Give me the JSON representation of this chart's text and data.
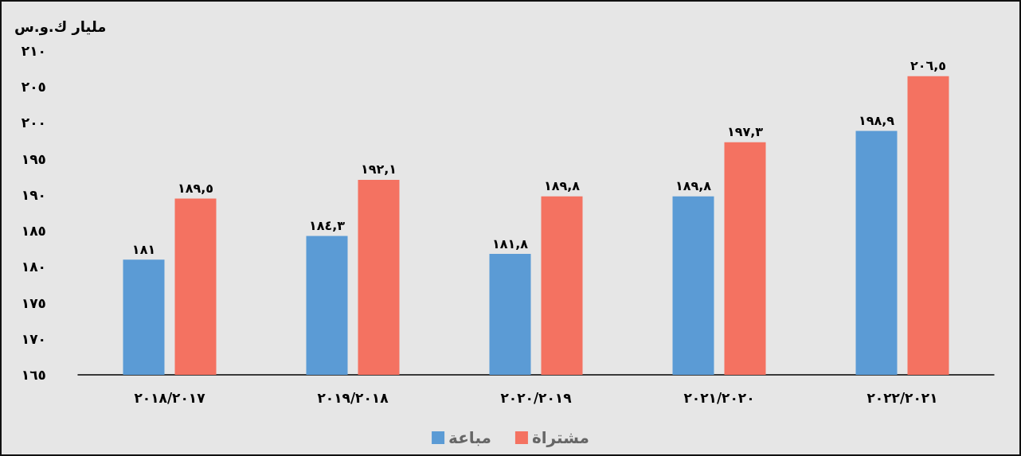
{
  "chart_data": {
    "type": "bar",
    "ylabel": "مليار ك.و.س",
    "categories": [
      "٢٠١٨/٢٠١٧",
      "٢٠١٩/٢٠١٨",
      "٢٠٢٠/٢٠١٩",
      "٢٠٢١/٢٠٢٠",
      "٢٠٢٢/٢٠٢١"
    ],
    "series": [
      {
        "name": "مباعة",
        "color": "#5b9bd5",
        "values": [
          181,
          184.3,
          181.8,
          189.8,
          198.9
        ],
        "value_labels": [
          "١٨١",
          "١٨٤,٣",
          "١٨١,٨",
          "١٨٩,٨",
          "١٩٨,٩"
        ]
      },
      {
        "name": "مشتراة",
        "color": "#f47261",
        "values": [
          189.5,
          192.1,
          189.8,
          197.3,
          206.5
        ],
        "value_labels": [
          "١٨٩,٥",
          "١٩٢,١",
          "١٨٩,٨",
          "١٩٧,٣",
          "٢٠٦,٥"
        ]
      }
    ],
    "ylim": [
      165,
      210
    ],
    "yticks": [
      {
        "value": 165,
        "label": "١٦٥"
      },
      {
        "value": 170,
        "label": "١٧٠"
      },
      {
        "value": 175,
        "label": "١٧٥"
      },
      {
        "value": 180,
        "label": "١٨٠"
      },
      {
        "value": 185,
        "label": "١٨٥"
      },
      {
        "value": 190,
        "label": "١٩٠"
      },
      {
        "value": 195,
        "label": "١٩٥"
      },
      {
        "value": 200,
        "label": "٢٠٠"
      },
      {
        "value": 205,
        "label": "٢٠٥"
      },
      {
        "value": 210,
        "label": "٢١٠"
      }
    ],
    "grid": false,
    "legend": "bottom"
  }
}
